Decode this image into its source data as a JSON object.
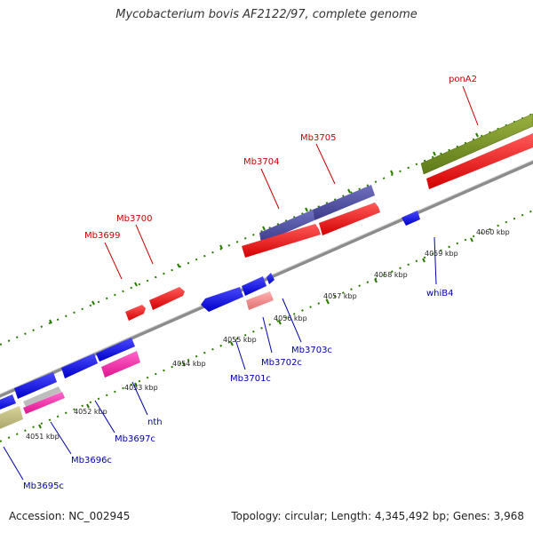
{
  "title": "Mycobacterium bovis AF2122/97, complete genome",
  "footer": {
    "accession": "Accession: NC_002945",
    "info": "Topology: circular; Length: 4,345,492 bp; Genes: 3,968"
  },
  "colors": {
    "forward_label": "#cc0000",
    "reverse_label": "#0000aa",
    "tick": "#2a7a00",
    "backbone": "#888888"
  },
  "kbp_labels": [
    "4051 kbp",
    "4052 kbp",
    "4053 kbp",
    "4054 kbp",
    "4055 kbp",
    "4056 kbp",
    "4057 kbp",
    "4058 kbp",
    "4059 kbp",
    "4060 kbp"
  ],
  "forward_genes": [
    "Mb3699",
    "Mb3700",
    "Mb3704",
    "Mb3705",
    "ponA2"
  ],
  "reverse_genes": [
    "Mb3695c",
    "Mb3696c",
    "Mb3697c",
    "nth",
    "Mb3701c",
    "Mb3702c",
    "Mb3703c",
    "whiB4"
  ]
}
